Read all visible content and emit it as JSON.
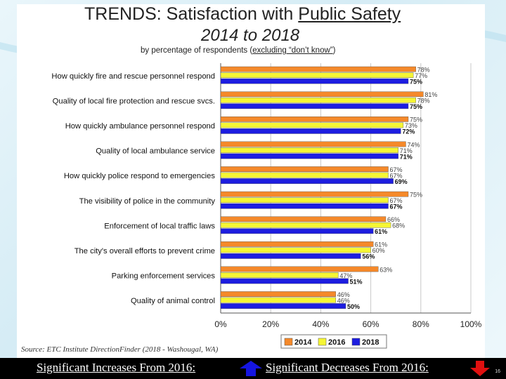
{
  "slide": {
    "title_prefix": "TRENDS:  Satisfaction with ",
    "title_underlined": "Public Safety",
    "subtitle": "2014 to 2018",
    "caption_prefix": "by percentage of respondents (",
    "caption_underlined": "excluding “don’t know”",
    "caption_suffix": ")",
    "source": "Source:  ETC Institute DirectionFinder (2018 - Washougal, WA)",
    "footer_increase": "Significant Increases From 2016:",
    "footer_decrease": "Significant Decreases From 2016:",
    "increase_icon": "up-arrow-icon",
    "decrease_icon": "down-arrow-icon",
    "increase_color": "#1515e0",
    "decrease_color": "#e01010",
    "slide_number": "16"
  },
  "chart_data": {
    "type": "bar",
    "orientation": "horizontal",
    "xlim": [
      0,
      100
    ],
    "x_ticks": [
      "0%",
      "20%",
      "40%",
      "60%",
      "80%",
      "100%"
    ],
    "grid": true,
    "legend_position": "bottom-right",
    "categories": [
      "How quickly fire and rescue personnel respond",
      "Quality of local fire protection and rescue svcs.",
      "How quickly ambulance personnel respond",
      "Quality of local ambulance service",
      "How quickly police respond to emergencies",
      "The visibility of police in the community",
      "Enforcement of local traffic laws",
      "The city's overall efforts to prevent crime",
      "Parking enforcement services",
      "Quality of animal control"
    ],
    "series": [
      {
        "name": "2014",
        "color": "#f5892a",
        "values": [
          78,
          81,
          75,
          74,
          67,
          75,
          66,
          61,
          63,
          46
        ]
      },
      {
        "name": "2016",
        "color": "#f6f635",
        "values": [
          77,
          78,
          73,
          71,
          67,
          67,
          68,
          60,
          47,
          46
        ]
      },
      {
        "name": "2018",
        "color": "#1d1de0",
        "values": [
          75,
          75,
          72,
          71,
          69,
          67,
          61,
          56,
          51,
          50
        ]
      }
    ],
    "value_labels": [
      [
        "78%",
        "77%",
        "75%"
      ],
      [
        "81%",
        "78%",
        "75%"
      ],
      [
        "75%",
        "73%",
        "72%"
      ],
      [
        "74%",
        "71%",
        "71%"
      ],
      [
        "67%",
        "67%",
        "69%"
      ],
      [
        "75%",
        "67%",
        "67%"
      ],
      [
        "66%",
        "68%",
        "61%"
      ],
      [
        "61%",
        "60%",
        "56%"
      ],
      [
        "63%",
        "47%",
        "51%"
      ],
      [
        "46%",
        "46%",
        "50%"
      ]
    ]
  }
}
